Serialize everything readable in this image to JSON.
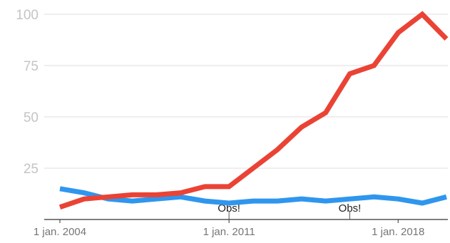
{
  "chart_data": {
    "type": "line",
    "title": "",
    "xlabel": "",
    "ylabel": "",
    "x": [
      2004,
      2005,
      2006,
      2007,
      2008,
      2009,
      2010,
      2011,
      2012,
      2013,
      2014,
      2015,
      2016,
      2017,
      2018,
      2019,
      2020
    ],
    "ylim": [
      0,
      100
    ],
    "y_ticks": [
      "25",
      "50",
      "75",
      "100"
    ],
    "y_tick_values": [
      25,
      50,
      75,
      100
    ],
    "x_ticks": [
      "1 jan. 2004",
      "1 jan. 2011",
      "1 jan. 2018"
    ],
    "x_tick_values": [
      2004,
      2011,
      2018
    ],
    "series": [
      {
        "color": "#ea4335",
        "values": [
          6,
          10,
          11,
          12,
          12,
          13,
          16,
          16,
          25,
          34,
          45,
          52,
          71,
          75,
          91,
          100,
          88
        ]
      },
      {
        "color": "#2f96ee",
        "values": [
          15,
          13,
          10,
          9,
          10,
          11,
          9,
          8,
          9,
          9,
          10,
          9,
          10,
          11,
          10,
          8,
          11
        ]
      }
    ],
    "annotations": [
      {
        "text": "Obs!",
        "x": 2011
      },
      {
        "text": "Obs!",
        "x": 2016
      }
    ],
    "grid": true,
    "legend": "none"
  }
}
